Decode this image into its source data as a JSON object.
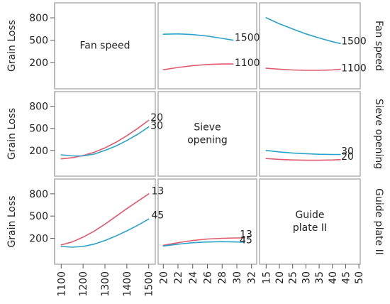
{
  "colors": {
    "series_a": "#e05a6e",
    "series_b": "#2aa3c9",
    "frame": "#b0b0b0"
  },
  "chart_data": {
    "type": "line",
    "factors": [
      "Fan speed",
      "Sieve opening",
      "Guide plate II"
    ],
    "diagonal_labels": [
      [
        "Fan speed"
      ],
      [
        "Sieve",
        "opening"
      ],
      [
        "Guide",
        "plate II"
      ]
    ],
    "right_titles": [
      "Fan speed",
      "Sieve opening",
      "Guide plate II"
    ],
    "ylabel": "Grain Loss",
    "y_ticks": [
      800,
      500,
      200
    ],
    "ylim": [
      -150,
      1000
    ],
    "x_axes": [
      {
        "range": [
          1070,
          1530
        ],
        "ticks": [
          1100,
          1200,
          1300,
          1400,
          1500
        ]
      },
      {
        "range": [
          19.3,
          32.7
        ],
        "ticks": [
          20,
          22,
          24,
          26,
          28,
          30,
          32
        ]
      },
      {
        "range": [
          12.5,
          50.5
        ],
        "ticks": [
          15,
          20,
          25,
          30,
          35,
          40,
          45,
          50
        ]
      }
    ],
    "panels": [
      {
        "row": 0,
        "col": 1,
        "series": [
          {
            "name": "1500",
            "color": "series_b",
            "x": [
              20,
              22,
              24,
              26,
              28,
              29.5
            ],
            "y": [
              580,
              585,
              575,
              555,
              525,
              500
            ],
            "label_at": [
              29.7,
              540
            ]
          },
          {
            "name": "1100",
            "color": "series_a",
            "x": [
              20,
              22,
              24,
              26,
              28,
              29.5
            ],
            "y": [
              105,
              135,
              160,
              175,
              182,
              182
            ],
            "label_at": [
              29.7,
              200
            ]
          }
        ]
      },
      {
        "row": 0,
        "col": 2,
        "series": [
          {
            "name": "1500",
            "color": "series_b",
            "x": [
              15,
              20,
              25,
              30,
              35,
              40,
              43
            ],
            "y": [
              800,
              720,
              650,
              585,
              530,
              480,
              455
            ],
            "label_at": [
              43.3,
              490
            ]
          },
          {
            "name": "1100",
            "color": "series_a",
            "x": [
              15,
              20,
              25,
              30,
              35,
              40,
              43
            ],
            "y": [
              125,
              112,
              102,
              97,
              97,
              103,
              110
            ],
            "label_at": [
              43.3,
              130
            ]
          }
        ]
      },
      {
        "row": 1,
        "col": 0,
        "series": [
          {
            "name": "20",
            "color": "series_a",
            "x": [
              1100,
              1150,
              1200,
              1250,
              1300,
              1350,
              1400,
              1450,
              1500
            ],
            "y": [
              85,
              100,
              130,
              175,
              235,
              310,
              400,
              500,
              610
            ],
            "label_at": [
              1508,
              650
            ]
          },
          {
            "name": "30",
            "color": "series_b",
            "x": [
              1100,
              1150,
              1200,
              1250,
              1300,
              1350,
              1400,
              1450,
              1500
            ],
            "y": [
              140,
              125,
              125,
              150,
              200,
              260,
              335,
              420,
              520
            ],
            "label_at": [
              1508,
              540
            ]
          }
        ]
      },
      {
        "row": 1,
        "col": 2,
        "series": [
          {
            "name": "30",
            "color": "series_b",
            "x": [
              15,
              20,
              25,
              30,
              35,
              40,
              43
            ],
            "y": [
              200,
              180,
              165,
              155,
              148,
              145,
              145
            ],
            "label_at": [
              43.3,
              195
            ]
          },
          {
            "name": "20",
            "color": "series_a",
            "x": [
              15,
              20,
              25,
              30,
              35,
              40,
              43
            ],
            "y": [
              90,
              78,
              70,
              66,
              66,
              70,
              75
            ],
            "label_at": [
              43.3,
              120
            ]
          }
        ]
      },
      {
        "row": 2,
        "col": 0,
        "series": [
          {
            "name": "13",
            "color": "series_a",
            "x": [
              1100,
              1150,
              1200,
              1250,
              1300,
              1350,
              1400,
              1450,
              1500
            ],
            "y": [
              110,
              150,
              215,
              295,
              390,
              495,
              600,
              700,
              800
            ],
            "label_at": [
              1512,
              840
            ]
          },
          {
            "name": "45",
            "color": "series_b",
            "x": [
              1100,
              1150,
              1200,
              1250,
              1300,
              1350,
              1400,
              1450,
              1500
            ],
            "y": [
              90,
              80,
              90,
              120,
              170,
              230,
              300,
              375,
              460
            ],
            "label_at": [
              1512,
              515
            ]
          }
        ]
      },
      {
        "row": 2,
        "col": 1,
        "series": [
          {
            "name": "13",
            "color": "series_a",
            "x": [
              20,
              22,
              24,
              26,
              28,
              30,
              31
            ],
            "y": [
              105,
              140,
              170,
              190,
              200,
              205,
              205
            ],
            "label_at": [
              30.4,
              255
            ]
          },
          {
            "name": "45",
            "color": "series_b",
            "x": [
              20,
              22,
              24,
              26,
              28,
              30,
              31
            ],
            "y": [
              95,
              120,
              140,
              150,
              155,
              150,
              148
            ],
            "label_at": [
              30.4,
              180
            ]
          }
        ]
      }
    ]
  }
}
